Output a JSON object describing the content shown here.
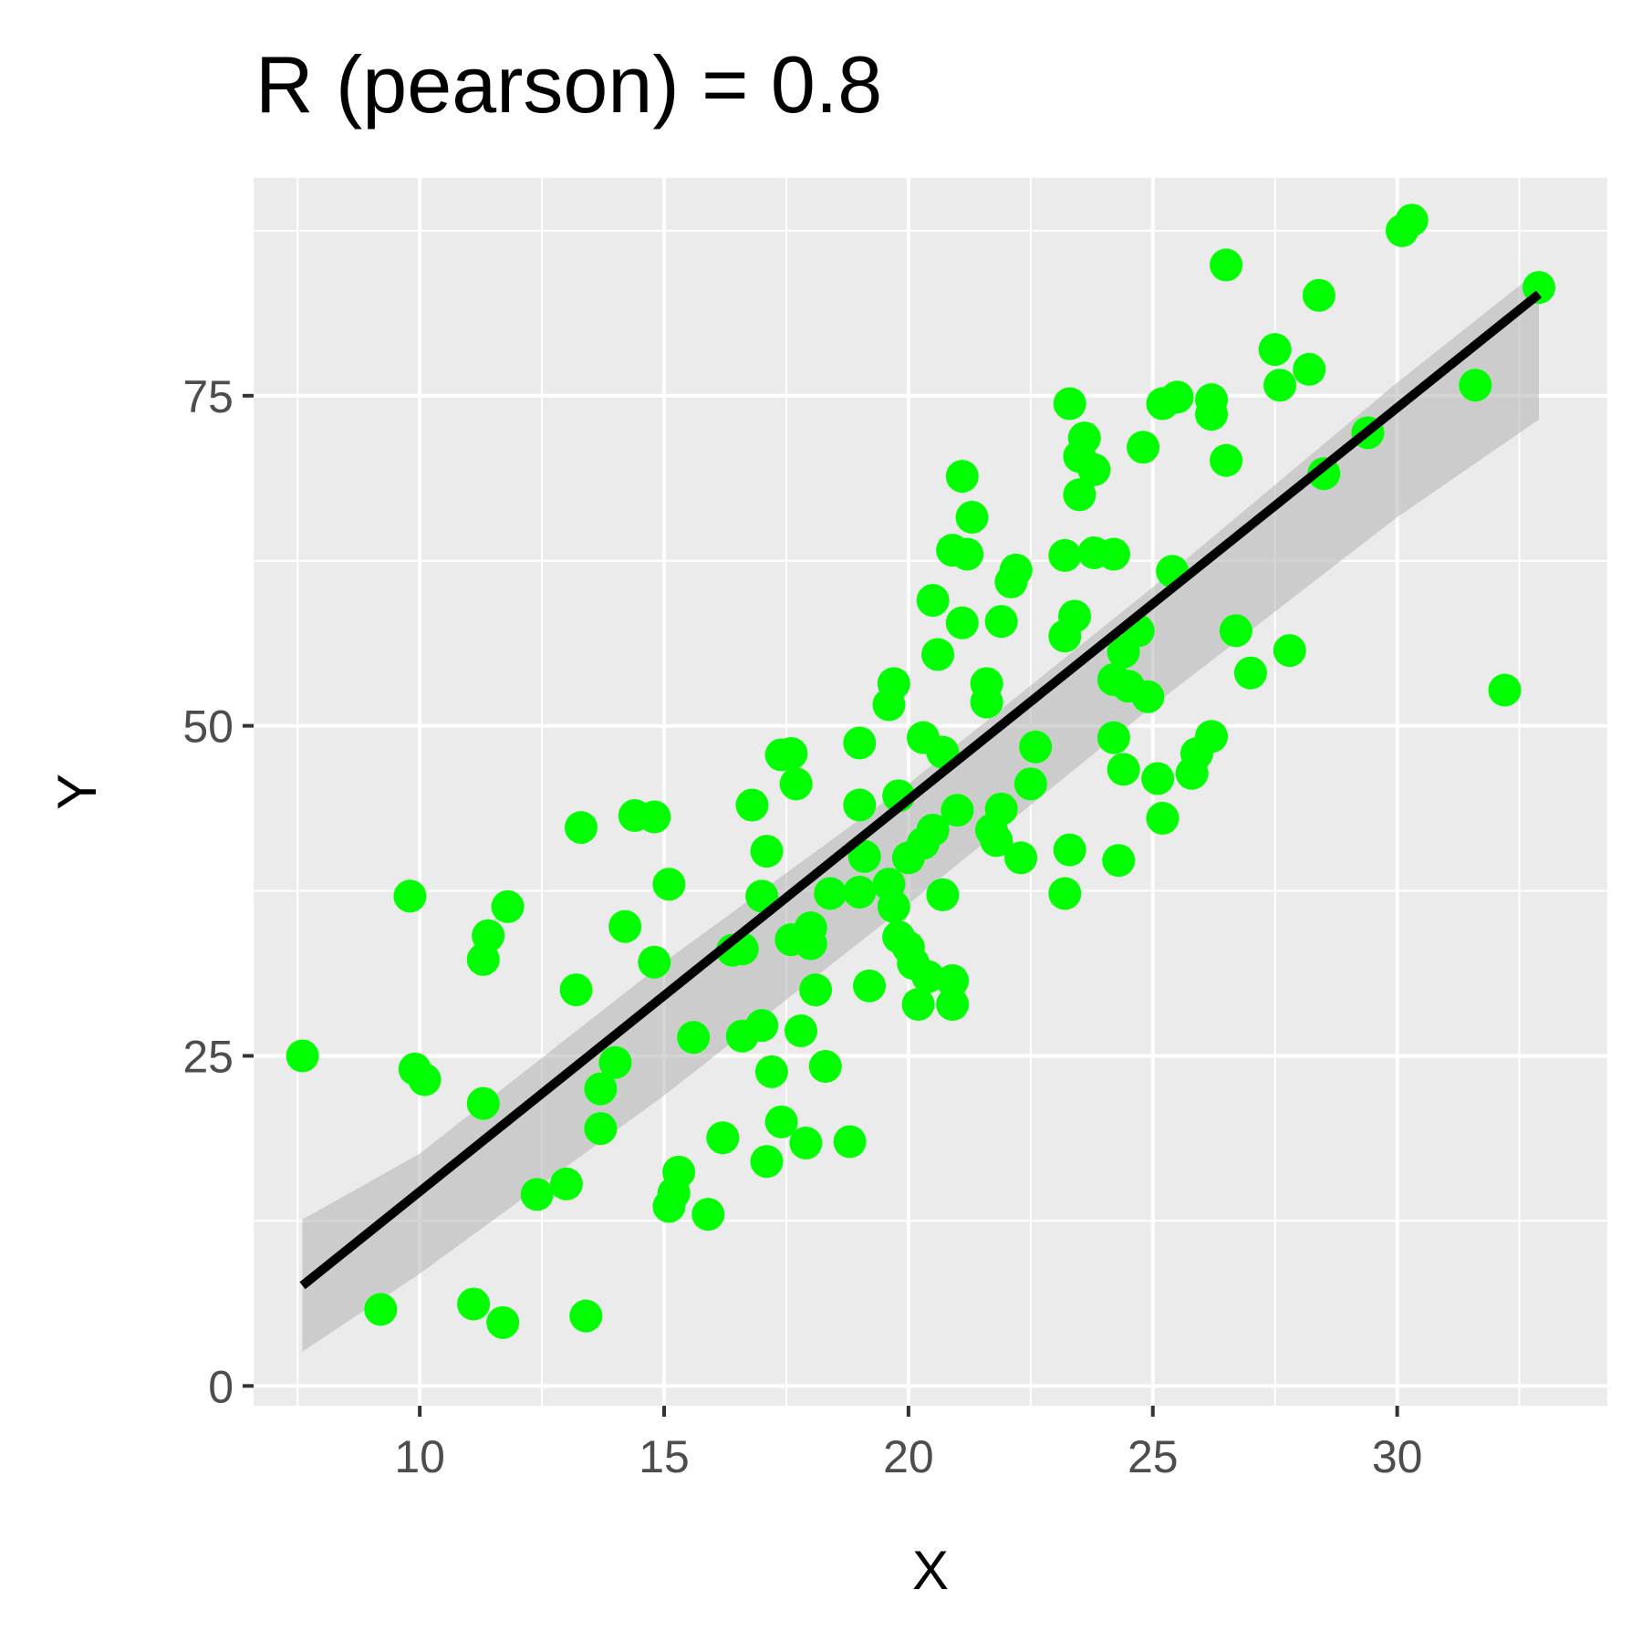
{
  "chart_data": {
    "type": "scatter",
    "title": "R (pearson) = 0.8",
    "xlabel": "X",
    "ylabel": "Y",
    "xlim": [
      6.6,
      34.3
    ],
    "ylim": [
      -1.5,
      91.5
    ],
    "x_ticks": [
      10,
      15,
      20,
      25,
      30
    ],
    "y_ticks": [
      0,
      25,
      50,
      75
    ],
    "x_tick_labels": [
      "10",
      "15",
      "20",
      "25",
      "30"
    ],
    "y_tick_labels": [
      "0",
      "25",
      "50",
      "75"
    ],
    "grid": true,
    "legend": "none",
    "background_color": "#ebebeb",
    "grid_color": "#ffffff",
    "point_color": "#00ff00",
    "line_color": "#000000",
    "band_color": "#b3b3b3",
    "fit": {
      "x": [
        7.6,
        32.9
      ],
      "y": [
        7.6,
        82.7
      ]
    },
    "band": {
      "x": [
        7.6,
        10,
        15,
        20,
        25,
        30,
        32.9
      ],
      "lower": [
        2.6,
        8.5,
        22.0,
        36.5,
        51.5,
        65.8,
        73.2
      ],
      "upper": [
        12.6,
        17.6,
        32.1,
        45.6,
        60.5,
        76.0,
        84.5
      ]
    },
    "points": [
      [
        7.6,
        25.0
      ],
      [
        9.2,
        5.8
      ],
      [
        9.8,
        37.1
      ],
      [
        9.9,
        24.0
      ],
      [
        10.1,
        23.2
      ],
      [
        11.1,
        6.2
      ],
      [
        11.3,
        32.3
      ],
      [
        11.4,
        34.1
      ],
      [
        11.3,
        21.4
      ],
      [
        11.7,
        4.8
      ],
      [
        11.8,
        36.3
      ],
      [
        12.4,
        14.5
      ],
      [
        13.0,
        15.3
      ],
      [
        13.2,
        30.0
      ],
      [
        13.3,
        42.3
      ],
      [
        13.4,
        5.3
      ],
      [
        13.7,
        19.5
      ],
      [
        13.7,
        22.5
      ],
      [
        14.0,
        24.5
      ],
      [
        14.2,
        34.8
      ],
      [
        14.4,
        43.2
      ],
      [
        14.8,
        43.1
      ],
      [
        14.8,
        32.1
      ],
      [
        15.1,
        38.0
      ],
      [
        15.1,
        13.6
      ],
      [
        15.2,
        14.6
      ],
      [
        15.3,
        16.2
      ],
      [
        15.6,
        26.4
      ],
      [
        15.9,
        13.0
      ],
      [
        16.2,
        18.8
      ],
      [
        16.4,
        33.0
      ],
      [
        16.6,
        33.1
      ],
      [
        16.6,
        26.5
      ],
      [
        16.8,
        44.0
      ],
      [
        17.0,
        27.3
      ],
      [
        17.0,
        37.1
      ],
      [
        17.1,
        40.5
      ],
      [
        17.1,
        17.0
      ],
      [
        17.2,
        23.8
      ],
      [
        17.4,
        47.8
      ],
      [
        17.4,
        20.0
      ],
      [
        17.6,
        47.9
      ],
      [
        17.7,
        45.6
      ],
      [
        17.6,
        33.8
      ],
      [
        17.8,
        26.9
      ],
      [
        17.9,
        18.4
      ],
      [
        18.0,
        33.5
      ],
      [
        18.0,
        34.7
      ],
      [
        18.1,
        30.0
      ],
      [
        18.3,
        24.2
      ],
      [
        18.4,
        37.3
      ],
      [
        18.8,
        18.5
      ],
      [
        19.0,
        48.7
      ],
      [
        19.0,
        44.0
      ],
      [
        19.1,
        40.1
      ],
      [
        19.0,
        37.4
      ],
      [
        19.2,
        30.3
      ],
      [
        19.6,
        38.0
      ],
      [
        19.6,
        51.6
      ],
      [
        19.7,
        53.2
      ],
      [
        19.7,
        36.3
      ],
      [
        19.8,
        34.0
      ],
      [
        19.8,
        44.7
      ],
      [
        20.0,
        33.2
      ],
      [
        20.1,
        32.0
      ],
      [
        20.0,
        40.0
      ],
      [
        20.3,
        41.1
      ],
      [
        20.2,
        28.9
      ],
      [
        20.3,
        49.1
      ],
      [
        20.4,
        31.0
      ],
      [
        20.5,
        42.1
      ],
      [
        20.5,
        59.5
      ],
      [
        20.6,
        55.4
      ],
      [
        20.7,
        37.2
      ],
      [
        20.7,
        48.0
      ],
      [
        20.9,
        30.7
      ],
      [
        20.9,
        28.9
      ],
      [
        21.0,
        43.6
      ],
      [
        20.9,
        63.3
      ],
      [
        21.1,
        68.9
      ],
      [
        21.1,
        57.8
      ],
      [
        21.2,
        63.0
      ],
      [
        21.3,
        65.8
      ],
      [
        21.6,
        53.2
      ],
      [
        21.6,
        51.8
      ],
      [
        21.7,
        42.1
      ],
      [
        21.8,
        41.3
      ],
      [
        21.9,
        57.9
      ],
      [
        21.9,
        43.7
      ],
      [
        22.1,
        60.9
      ],
      [
        22.2,
        61.8
      ],
      [
        22.3,
        40.0
      ],
      [
        22.5,
        45.6
      ],
      [
        22.6,
        48.4
      ],
      [
        23.2,
        62.9
      ],
      [
        23.2,
        56.8
      ],
      [
        23.2,
        37.3
      ],
      [
        23.3,
        40.6
      ],
      [
        23.4,
        58.3
      ],
      [
        23.3,
        74.4
      ],
      [
        23.5,
        70.4
      ],
      [
        23.5,
        67.5
      ],
      [
        23.6,
        71.8
      ],
      [
        23.8,
        69.4
      ],
      [
        23.8,
        63.1
      ],
      [
        24.2,
        63.0
      ],
      [
        24.2,
        49.1
      ],
      [
        24.2,
        53.5
      ],
      [
        24.3,
        39.8
      ],
      [
        24.4,
        55.6
      ],
      [
        24.4,
        46.7
      ],
      [
        24.5,
        53.0
      ],
      [
        24.7,
        57.2
      ],
      [
        24.8,
        71.1
      ],
      [
        24.9,
        52.2
      ],
      [
        25.1,
        46.0
      ],
      [
        25.2,
        43.0
      ],
      [
        25.2,
        74.4
      ],
      [
        25.4,
        61.7
      ],
      [
        25.5,
        74.9
      ],
      [
        25.8,
        46.4
      ],
      [
        25.9,
        47.9
      ],
      [
        26.2,
        49.2
      ],
      [
        26.2,
        73.6
      ],
      [
        26.2,
        74.7
      ],
      [
        26.5,
        70.1
      ],
      [
        26.5,
        84.9
      ],
      [
        26.7,
        57.2
      ],
      [
        27.0,
        54.0
      ],
      [
        27.5,
        78.5
      ],
      [
        27.6,
        75.8
      ],
      [
        27.8,
        55.7
      ],
      [
        28.2,
        77.0
      ],
      [
        28.4,
        82.6
      ],
      [
        28.5,
        69.1
      ],
      [
        29.4,
        72.2
      ],
      [
        30.1,
        87.5
      ],
      [
        30.3,
        88.3
      ],
      [
        31.6,
        75.8
      ],
      [
        32.2,
        52.7
      ],
      [
        32.9,
        83.2
      ]
    ]
  }
}
